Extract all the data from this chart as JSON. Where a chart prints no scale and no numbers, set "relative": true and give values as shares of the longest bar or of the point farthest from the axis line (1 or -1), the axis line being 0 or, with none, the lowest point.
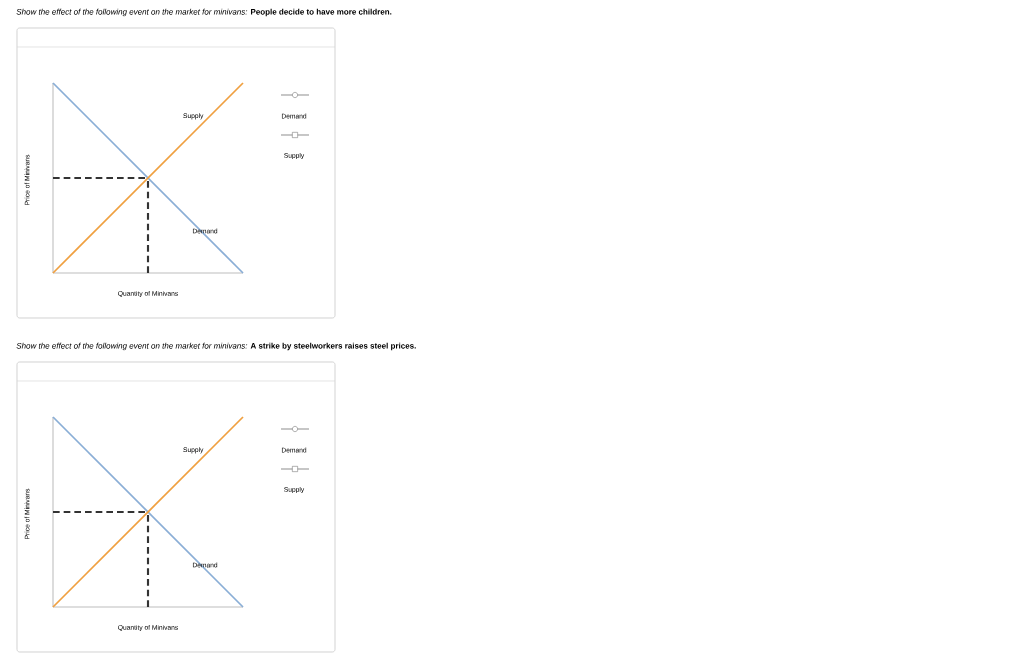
{
  "chart_data": [
    {
      "type": "line",
      "title": "*Show the effect of the following event on the market for minivans:* **People decide to have more children.**",
      "xlabel": "Quantity of Minivans",
      "ylabel": "Price of Minivans",
      "relative": true,
      "categories": [
        null,
        null,
        null
      ],
      "annotations": [
        "Demand",
        "Supply"
      ],
      "series": [
        {
          "name": "Demand",
          "color": "#8aaed6",
          "values": [
            1,
            0.5,
            0
          ]
        },
        {
          "name": "Supply",
          "color": "#f0a040",
          "values": [
            0,
            0.5,
            1
          ]
        }
      ],
      "ref_lines": [
        {
          "axis": "y",
          "value": 0.5,
          "color": "#333333",
          "line_style": "dashed"
        }
      ]
    },
    {
      "type": "line",
      "title": "*Show the effect of the following event on the market for minivans:* **A strike by steelworkers raises steel prices.**",
      "xlabel": "Quantity of Minivans",
      "ylabel": "Price of Minivans",
      "relative": true,
      "categories": [
        null,
        null,
        null
      ],
      "annotations": [
        "Demand",
        "Supply"
      ],
      "series": [
        {
          "name": "Demand",
          "color": "#8aaed6",
          "values": [
            1,
            0.5,
            0
          ]
        },
        {
          "name": "Supply",
          "color": "#f0a040",
          "values": [
            0,
            0.5,
            1
          ]
        }
      ],
      "ref_lines": [
        {
          "axis": "y",
          "value": 0.5,
          "color": "#333333",
          "line_style": "dashed"
        }
      ]
    }
  ]
}
